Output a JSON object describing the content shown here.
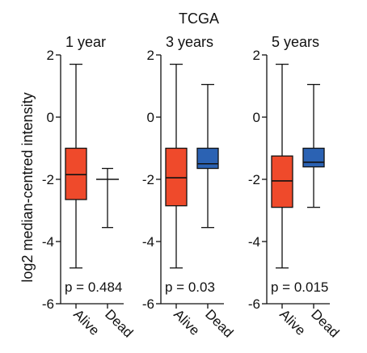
{
  "chart_data": {
    "type": "box",
    "suptitle": "TCGA",
    "ylabel": "log2 median-centred intensity",
    "ylim": [
      -6,
      2
    ],
    "yticks": [
      2,
      0,
      -2,
      -4,
      -6
    ],
    "ytick_labels": [
      "2",
      "0",
      "-2",
      "-4",
      "-6"
    ],
    "categories": [
      "Alive",
      "Dead"
    ],
    "colors": {
      "Alive": "#ef4a2b",
      "Dead": "#2b62b3"
    },
    "panels": [
      {
        "title": "1 year",
        "p_value": "p = 0.484",
        "boxes": [
          {
            "category": "Alive",
            "whislo": -4.85,
            "q1": -2.65,
            "med": -1.85,
            "q3": -1.0,
            "whishi": 1.7,
            "filled": true
          },
          {
            "category": "Dead",
            "whislo": -3.55,
            "q1": -2.0,
            "med": -2.0,
            "q3": -2.0,
            "whishi": -1.65,
            "filled": false
          }
        ]
      },
      {
        "title": "3 years",
        "p_value": "p = 0.03",
        "boxes": [
          {
            "category": "Alive",
            "whislo": -4.85,
            "q1": -2.85,
            "med": -1.95,
            "q3": -1.0,
            "whishi": 1.7,
            "filled": true
          },
          {
            "category": "Dead",
            "whislo": -3.55,
            "q1": -1.65,
            "med": -1.5,
            "q3": -1.0,
            "whishi": 1.05,
            "filled": true
          }
        ]
      },
      {
        "title": "5 years",
        "p_value": "p = 0.015",
        "boxes": [
          {
            "category": "Alive",
            "whislo": -4.85,
            "q1": -2.9,
            "med": -2.05,
            "q3": -1.25,
            "whishi": 1.7,
            "filled": true
          },
          {
            "category": "Dead",
            "whislo": -2.9,
            "q1": -1.6,
            "med": -1.45,
            "q3": -1.0,
            "whishi": 1.05,
            "filled": true
          }
        ]
      }
    ]
  }
}
